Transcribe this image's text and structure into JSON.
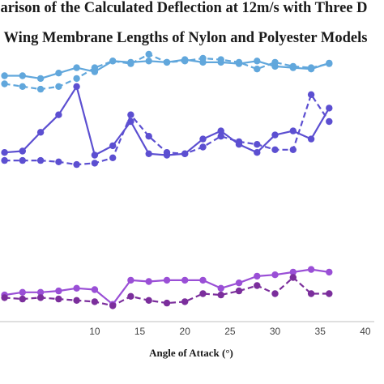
{
  "chart_data": {
    "type": "line",
    "title_lines": [
      "arison of the Calculated Deflection at 12m/s with Three D",
      "Wing Membrane Lengths of Nylon and Polyester Models"
    ],
    "xlabel": "Angle of Attack (°)",
    "ylabel": "",
    "xlim": [
      -0.5,
      41
    ],
    "ylim": [
      0,
      10
    ],
    "x_ticks": [
      10,
      15,
      20,
      25,
      30,
      35,
      40
    ],
    "grid": false,
    "series": [
      {
        "color": "#61a7dc",
        "dash": false,
        "x": [
          0,
          2,
          4,
          6,
          8,
          10,
          12,
          14,
          16,
          18,
          20,
          22,
          24,
          26,
          28,
          30,
          32,
          34,
          36
        ],
        "y": [
          9.05,
          9.05,
          8.95,
          9.15,
          9.35,
          9.2,
          9.6,
          9.55,
          9.6,
          9.55,
          9.65,
          9.55,
          9.55,
          9.5,
          9.6,
          9.4,
          9.35,
          9.3,
          9.52
        ]
      },
      {
        "color": "#61a7dc",
        "dash": true,
        "x": [
          0,
          2,
          4,
          6,
          8,
          10,
          12,
          14,
          16,
          18,
          20,
          22,
          24,
          26,
          28,
          30,
          32,
          34,
          36
        ],
        "y": [
          8.75,
          8.65,
          8.55,
          8.65,
          8.95,
          9.35,
          9.6,
          9.5,
          9.85,
          9.55,
          9.6,
          9.7,
          9.65,
          9.55,
          9.3,
          9.55,
          9.4,
          9.35,
          9.5
        ]
      },
      {
        "color": "#5c4fd1",
        "dash": false,
        "x": [
          0,
          2,
          4,
          6,
          8,
          10,
          12,
          14,
          16,
          18,
          20,
          22,
          24,
          26,
          28,
          30,
          32,
          34,
          36
        ],
        "y": [
          6.2,
          6.25,
          6.95,
          7.6,
          8.65,
          6.1,
          6.45,
          7.35,
          6.15,
          6.1,
          6.15,
          6.7,
          7.0,
          6.5,
          6.2,
          6.85,
          7.0,
          6.7,
          7.85
        ]
      },
      {
        "color": "#5c4fd1",
        "dash": true,
        "x": [
          0,
          2,
          4,
          6,
          8,
          10,
          12,
          14,
          16,
          18,
          20,
          22,
          24,
          26,
          28,
          30,
          32,
          34,
          36
        ],
        "y": [
          5.9,
          5.9,
          5.9,
          5.85,
          5.75,
          5.8,
          6.0,
          7.6,
          6.8,
          6.2,
          6.15,
          6.4,
          6.8,
          6.6,
          6.5,
          6.3,
          6.3,
          8.35,
          7.35
        ]
      },
      {
        "color": "#9a4fd6",
        "dash": false,
        "x": [
          0,
          2,
          4,
          6,
          8,
          10,
          12,
          14,
          16,
          18,
          20,
          22,
          24,
          26,
          28,
          30,
          32,
          34,
          36
        ],
        "y": [
          0.9,
          1.0,
          1.0,
          1.05,
          1.15,
          1.1,
          0.55,
          1.45,
          1.4,
          1.45,
          1.45,
          1.45,
          1.15,
          1.35,
          1.6,
          1.65,
          1.75,
          1.85,
          1.75
        ]
      },
      {
        "color": "#7b2e9c",
        "dash": true,
        "x": [
          0,
          2,
          4,
          6,
          8,
          10,
          12,
          14,
          16,
          18,
          20,
          22,
          24,
          26,
          28,
          30,
          32,
          34,
          36
        ],
        "y": [
          0.8,
          0.75,
          0.8,
          0.75,
          0.7,
          0.65,
          0.5,
          0.85,
          0.7,
          0.6,
          0.65,
          0.95,
          0.9,
          1.05,
          1.25,
          0.95,
          1.55,
          0.95,
          0.95
        ]
      }
    ]
  }
}
